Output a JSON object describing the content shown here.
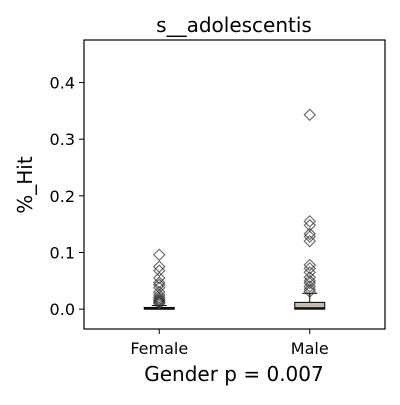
{
  "chart_data": {
    "type": "box",
    "title": "s__adolescentis",
    "xlabel": "Gender p = 0.007",
    "ylabel": "%_Hit",
    "ylim": [
      -0.035,
      0.475
    ],
    "yticks": [
      0.0,
      0.1,
      0.2,
      0.3,
      0.4
    ],
    "ytick_labels": [
      "0.0",
      "0.1",
      "0.2",
      "0.3",
      "0.4"
    ],
    "categories": [
      "Female",
      "Male"
    ],
    "grid": false,
    "legend": "none",
    "boxes": [
      {
        "name": "Female",
        "q1": 0.0,
        "median": 0.0005,
        "q3": 0.003,
        "whisker_low": 0.0,
        "whisker_high": 0.0065,
        "color": "#8c8c8c",
        "outliers": [
          0.096,
          0.075,
          0.068,
          0.055,
          0.047,
          0.043,
          0.038,
          0.03,
          0.025,
          0.021,
          0.018,
          0.016,
          0.014,
          0.012,
          0.01
        ]
      },
      {
        "name": "Male",
        "q1": 0.0,
        "median": 0.002,
        "q3": 0.012,
        "whisker_low": 0.0,
        "whisker_high": 0.028,
        "color": "#c4bbb2",
        "outliers": [
          0.343,
          0.155,
          0.148,
          0.133,
          0.128,
          0.12,
          0.078,
          0.072,
          0.065,
          0.056,
          0.05,
          0.046,
          0.04,
          0.035,
          0.031
        ]
      }
    ]
  }
}
